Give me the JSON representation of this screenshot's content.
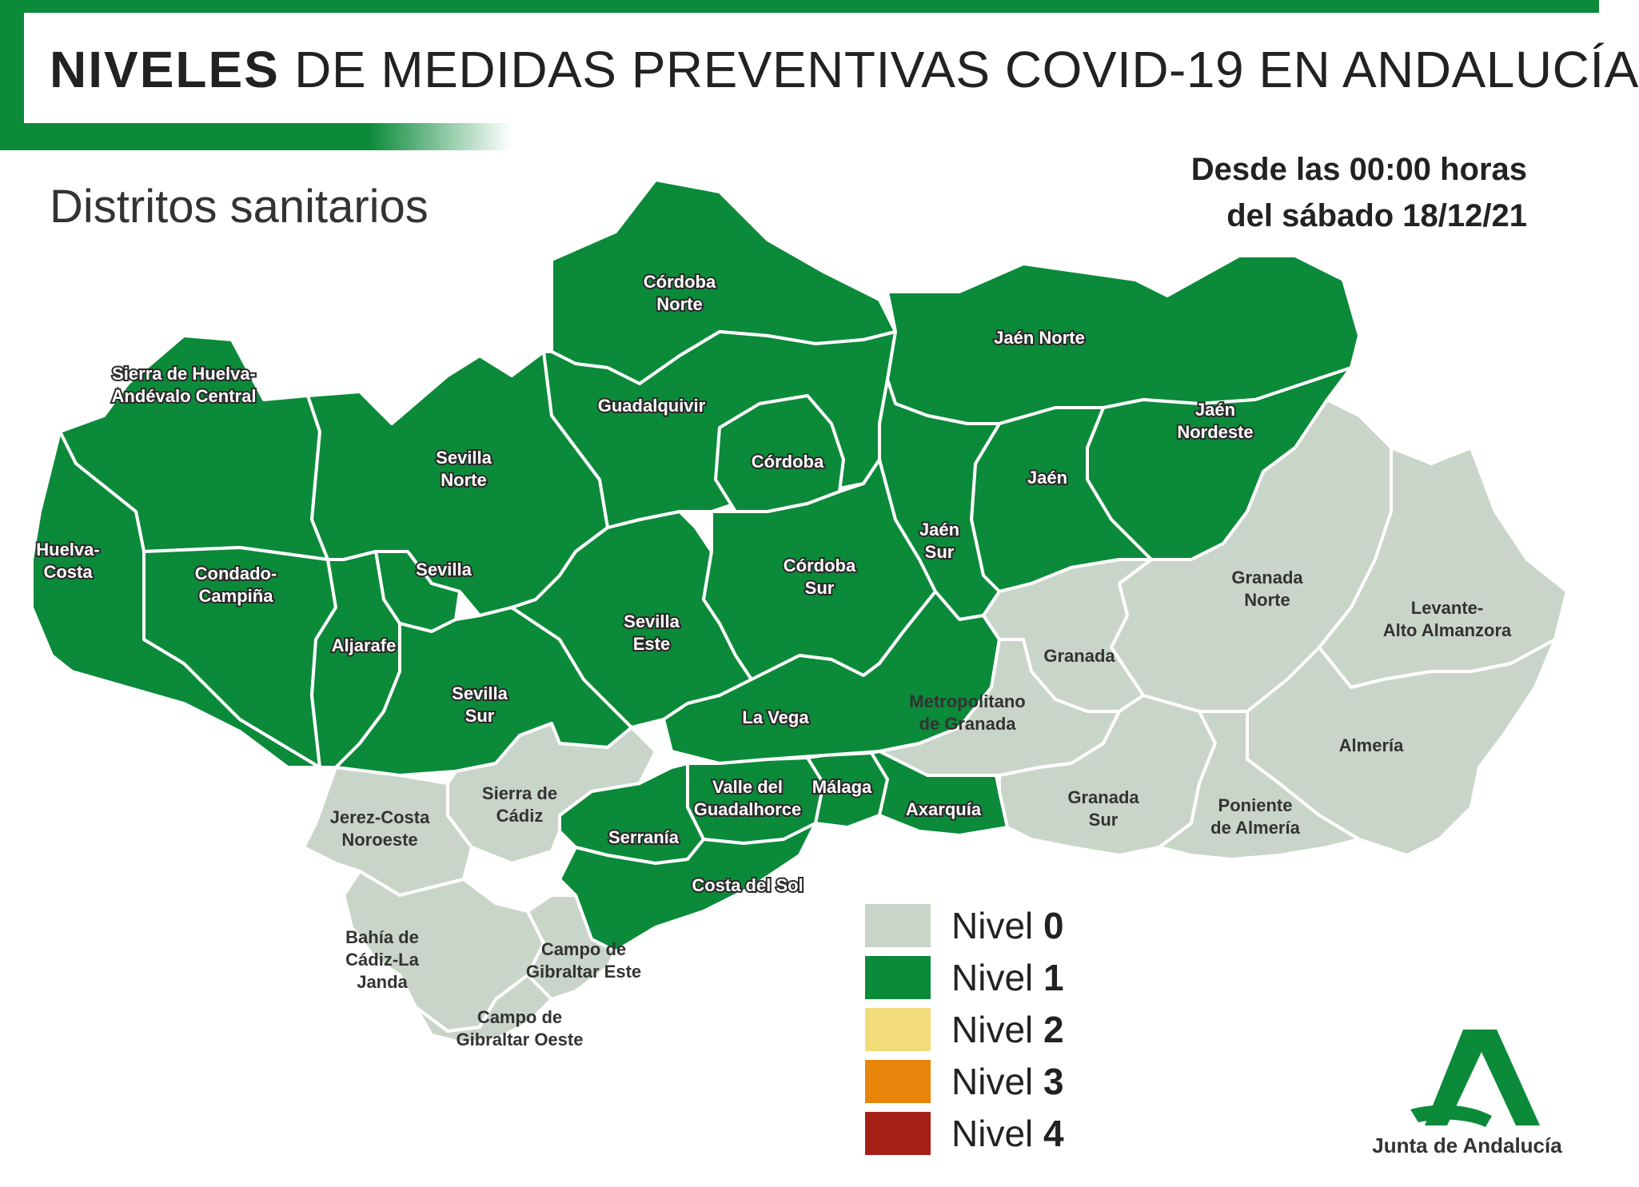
{
  "header": {
    "title_bold": "NIVELES",
    "title_rest": "DE MEDIDAS PREVENTIVAS COVID-19 EN ANDALUCÍA",
    "subtitle": "Distritos sanitarios",
    "date_line1": "Desde las 00:00 horas",
    "date_line2": "del sábado 18/12/21"
  },
  "colors": {
    "nivel_0": "#c9d5c8",
    "nivel_1": "#0b8a3a",
    "nivel_2": "#f2dc7a",
    "nivel_3": "#e8860c",
    "nivel_4": "#a52017",
    "border": "#ffffff"
  },
  "legend": [
    {
      "prefix": "Nivel ",
      "number": "0",
      "color": "#c9d5c8"
    },
    {
      "prefix": "Nivel ",
      "number": "1",
      "color": "#0b8a3a"
    },
    {
      "prefix": "Nivel ",
      "number": "2",
      "color": "#f2dc7a"
    },
    {
      "prefix": "Nivel ",
      "number": "3",
      "color": "#e8860c"
    },
    {
      "prefix": "Nivel ",
      "number": "4",
      "color": "#a52017"
    }
  ],
  "districts": [
    {
      "id": "sierra-huelva",
      "lines": [
        "Sierra de Huelva-",
        "Andévalo Central"
      ],
      "level": 1
    },
    {
      "id": "huelva-costa",
      "lines": [
        "Huelva-",
        "Costa"
      ],
      "level": 1
    },
    {
      "id": "condado-campina",
      "lines": [
        "Condado-",
        "Campiña"
      ],
      "level": 1
    },
    {
      "id": "sevilla-norte",
      "lines": [
        "Sevilla",
        "Norte"
      ],
      "level": 1
    },
    {
      "id": "sevilla",
      "lines": [
        "Sevilla"
      ],
      "level": 1
    },
    {
      "id": "aljarafe",
      "lines": [
        "Aljarafe"
      ],
      "level": 1
    },
    {
      "id": "sevilla-sur",
      "lines": [
        "Sevilla",
        "Sur"
      ],
      "level": 1
    },
    {
      "id": "sevilla-este",
      "lines": [
        "Sevilla",
        "Este"
      ],
      "level": 1
    },
    {
      "id": "cordoba-norte",
      "lines": [
        "Córdoba",
        "Norte"
      ],
      "level": 1
    },
    {
      "id": "guadalquivir",
      "lines": [
        "Guadalquivir"
      ],
      "level": 1
    },
    {
      "id": "cordoba",
      "lines": [
        "Córdoba"
      ],
      "level": 1
    },
    {
      "id": "cordoba-sur",
      "lines": [
        "Córdoba",
        "Sur"
      ],
      "level": 1
    },
    {
      "id": "jaen-norte",
      "lines": [
        "Jaén Norte"
      ],
      "level": 1
    },
    {
      "id": "jaen-nordeste",
      "lines": [
        "Jaén",
        "Nordeste"
      ],
      "level": 1
    },
    {
      "id": "jaen",
      "lines": [
        "Jaén"
      ],
      "level": 1
    },
    {
      "id": "jaen-sur",
      "lines": [
        "Jaén",
        "Sur"
      ],
      "level": 1
    },
    {
      "id": "la-vega",
      "lines": [
        "La Vega"
      ],
      "level": 1
    },
    {
      "id": "valle-guadalhorce",
      "lines": [
        "Valle del",
        "Guadalhorce"
      ],
      "level": 1
    },
    {
      "id": "malaga",
      "lines": [
        "Málaga"
      ],
      "level": 1
    },
    {
      "id": "axarquia",
      "lines": [
        "Axarquía"
      ],
      "level": 1
    },
    {
      "id": "serrania",
      "lines": [
        "Serranía"
      ],
      "level": 1
    },
    {
      "id": "costa-del-sol",
      "lines": [
        "Costa del Sol"
      ],
      "level": 1
    },
    {
      "id": "granada-norte",
      "lines": [
        "Granada",
        "Norte"
      ],
      "level": 0
    },
    {
      "id": "levante",
      "lines": [
        "Levante-",
        "Alto Almanzora"
      ],
      "level": 0
    },
    {
      "id": "granada",
      "lines": [
        "Granada"
      ],
      "level": 0
    },
    {
      "id": "metropolitano",
      "lines": [
        "Metropolitano",
        "de Granada"
      ],
      "level": 0
    },
    {
      "id": "almeria",
      "lines": [
        "Almería"
      ],
      "level": 0
    },
    {
      "id": "granada-sur",
      "lines": [
        "Granada",
        "Sur"
      ],
      "level": 0
    },
    {
      "id": "poniente",
      "lines": [
        "Poniente",
        "de Almería"
      ],
      "level": 0
    },
    {
      "id": "jerez",
      "lines": [
        "Jerez-Costa",
        "Noroeste"
      ],
      "level": 0
    },
    {
      "id": "sierra-cadiz",
      "lines": [
        "Sierra de",
        "Cádiz"
      ],
      "level": 0
    },
    {
      "id": "bahia-cadiz",
      "lines": [
        "Bahía de",
        "Cádiz-La",
        "Janda"
      ],
      "level": 0
    },
    {
      "id": "gibraltar-este",
      "lines": [
        "Campo de",
        "Gibraltar Este"
      ],
      "level": 0
    },
    {
      "id": "gibraltar-oeste",
      "lines": [
        "Campo de",
        "Gibraltar Oeste"
      ],
      "level": 0
    }
  ],
  "logo": {
    "text": "Junta de Andalucía"
  }
}
